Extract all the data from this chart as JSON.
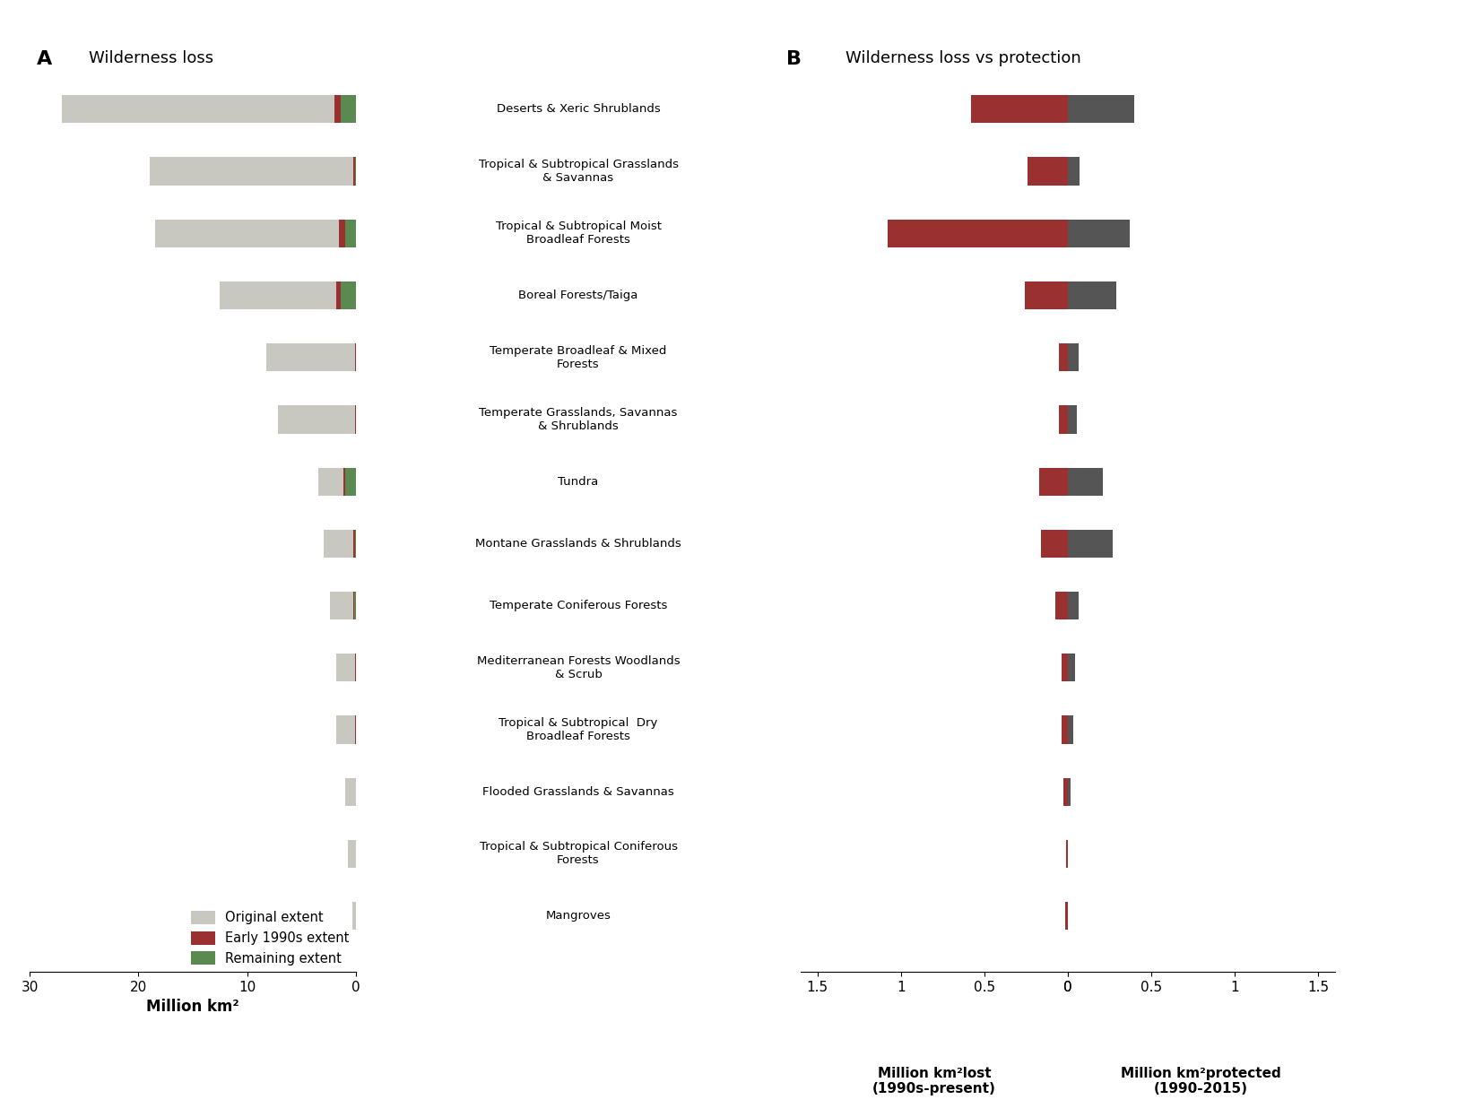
{
  "biomes": [
    "Deserts & Xeric Shrublands",
    "Tropical & Subtropical Grasslands\n& Savannas",
    "Tropical & Subtropical Moist\nBroadleaf Forests",
    "Boreal Forests/Taiga",
    "Temperate Broadleaf & Mixed\nForests",
    "Temperate Grasslands, Savannas\n& Shrublands",
    "Tundra",
    "Montane Grasslands & Shrublands",
    "Temperate Coniferous Forests",
    "Mediterranean Forests Woodlands\n& Scrub",
    "Tropical & Subtropical  Dry\nBroadleaf Forests",
    "Flooded Grasslands & Savannas",
    "Tropical & Subtropical Coniferous\nForests",
    "Mangroves"
  ],
  "panel_a_original": [
    27.0,
    19.0,
    18.5,
    12.5,
    8.2,
    7.2,
    3.5,
    3.0,
    2.4,
    1.8,
    1.8,
    1.0,
    0.7,
    0.3
  ],
  "panel_a_loss_1990": [
    0.6,
    0.18,
    0.55,
    0.38,
    0.08,
    0.08,
    0.14,
    0.15,
    0.09,
    0.04,
    0.04,
    0.02,
    0.01,
    0.005
  ],
  "panel_a_remaining": [
    1.4,
    0.1,
    1.0,
    1.4,
    0.0,
    0.0,
    1.0,
    0.1,
    0.15,
    0.0,
    0.0,
    0.0,
    0.0,
    0.0
  ],
  "panel_b_loss": [
    0.58,
    0.24,
    1.08,
    0.26,
    0.055,
    0.055,
    0.17,
    0.16,
    0.075,
    0.035,
    0.035,
    0.025,
    0.008,
    0.018
  ],
  "panel_b_protected": [
    0.4,
    0.07,
    0.37,
    0.29,
    0.065,
    0.055,
    0.21,
    0.27,
    0.065,
    0.045,
    0.035,
    0.015,
    0.003,
    0.003
  ],
  "color_original": "#c8c8c0",
  "color_loss_1990": "#9b3030",
  "color_remaining": "#5a8a50",
  "color_b_loss": "#9b3030",
  "color_b_protected": "#555555",
  "title_a": "Wilderness loss",
  "title_b": "Wilderness loss vs protection",
  "label_a": "A",
  "label_b": "B",
  "xlabel_a": "Million km²",
  "xlabel_b_loss": "Million km²lost\n(1990s-present)",
  "xlabel_b_prot": "Million km²protected\n(1990-2015)",
  "legend_original": "Original extent",
  "legend_1990": "Early 1990s extent",
  "legend_remaining": "Remaining extent"
}
